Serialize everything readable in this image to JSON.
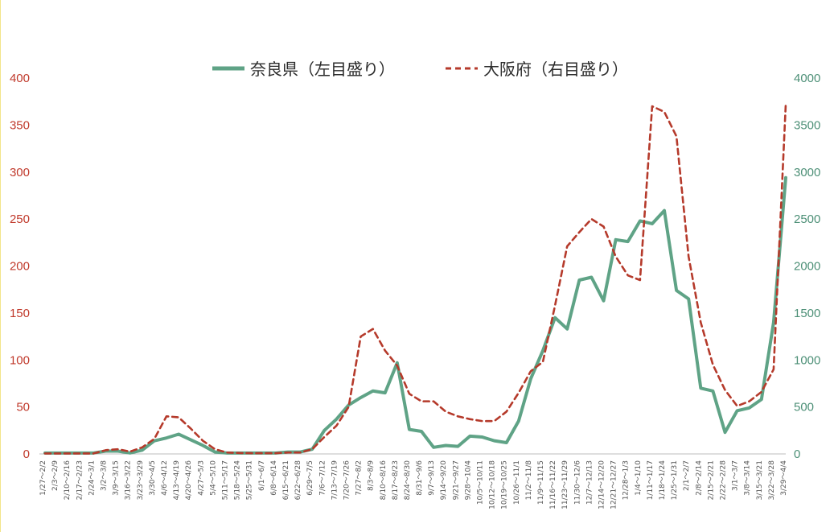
{
  "chart_data": {
    "type": "line",
    "title": "",
    "xlabel": "",
    "ylabel": "",
    "legend_position": "top-center",
    "grid": false,
    "y_left": {
      "range": [
        0,
        400
      ],
      "ticks": [
        0,
        50,
        100,
        150,
        200,
        250,
        300,
        350,
        400
      ],
      "color": "#c0392b"
    },
    "y_right": {
      "range": [
        0,
        4000
      ],
      "ticks": [
        0,
        500,
        1000,
        1500,
        2000,
        2500,
        3000,
        3500,
        4000
      ],
      "color": "#4c8f76"
    },
    "categories": [
      "1/27～2/2",
      "2/3～2/9",
      "2/10～2/16",
      "2/17～2/23",
      "2/24～3/1",
      "3/2～3/8",
      "3/9～3/15",
      "3/16～3/22",
      "3/23～3/29",
      "3/30～4/5",
      "4/6～4/12",
      "4/13～4/19",
      "4/20～4/26",
      "4/27～5/3",
      "5/4～5/10",
      "5/11～5/17",
      "5/18～5/24",
      "5/25～5/31",
      "6/1～6/7",
      "6/8～6/14",
      "6/15～6/21",
      "6/22～6/28",
      "6/29～7/5",
      "7/6～7/12",
      "7/13～7/19",
      "7/20～7/26",
      "7/27～8/2",
      "8/3～8/9",
      "8/10～8/16",
      "8/17～8/23",
      "8/24～8/30",
      "8/31～9/6",
      "9/7～9/13",
      "9/14～9/20",
      "9/21～9/27",
      "9/28～10/4",
      "10/5～10/11",
      "10/12～10/18",
      "10/19～10/25",
      "10/26～11/1",
      "11/2～11/8",
      "11/9～11/15",
      "11/16～11/22",
      "11/23～11/29",
      "11/30～12/6",
      "12/7～12/13",
      "12/14～12/20",
      "12/21～12/27",
      "12/28～1/3",
      "1/4～1/10",
      "1/11～1/17",
      "1/18～1/24",
      "1/25～1/31",
      "2/1～2/7",
      "2/8～2/14",
      "2/15～2/21",
      "2/22～2/28",
      "3/1～3/7",
      "3/8～3/14",
      "3/15～3/21",
      "3/22～3/28",
      "3/29～4/4"
    ],
    "series": [
      {
        "name": "奈良県（左目盛り）",
        "axis": "left",
        "color": "#5fa386",
        "style": "solid",
        "values": [
          1,
          1,
          1,
          1,
          1,
          3,
          3,
          1,
          4,
          14,
          17,
          21,
          15,
          9,
          2,
          1,
          1,
          1,
          1,
          1,
          2,
          2,
          5,
          25,
          37,
          52,
          60,
          67,
          65,
          97,
          26,
          24,
          7,
          9,
          8,
          19,
          18,
          14,
          12,
          35,
          80,
          110,
          145,
          133,
          185,
          188,
          163,
          228,
          226,
          248,
          245,
          259,
          174,
          165,
          70,
          67,
          23,
          46,
          49,
          58,
          140,
          294
        ]
      },
      {
        "name": "大阪府（右目盛り）",
        "axis": "right",
        "color": "#b53a2b",
        "style": "dashed",
        "values": [
          5,
          5,
          5,
          5,
          5,
          40,
          50,
          25,
          70,
          160,
          400,
          390,
          270,
          140,
          50,
          15,
          10,
          8,
          8,
          8,
          15,
          15,
          50,
          180,
          300,
          500,
          1250,
          1330,
          1100,
          940,
          640,
          560,
          560,
          450,
          400,
          370,
          350,
          350,
          450,
          650,
          880,
          980,
          1580,
          2210,
          2360,
          2500,
          2420,
          2100,
          1900,
          1850,
          3700,
          3640,
          3380,
          2100,
          1400,
          950,
          680,
          510,
          560,
          660,
          900,
          3720
        ]
      }
    ]
  }
}
